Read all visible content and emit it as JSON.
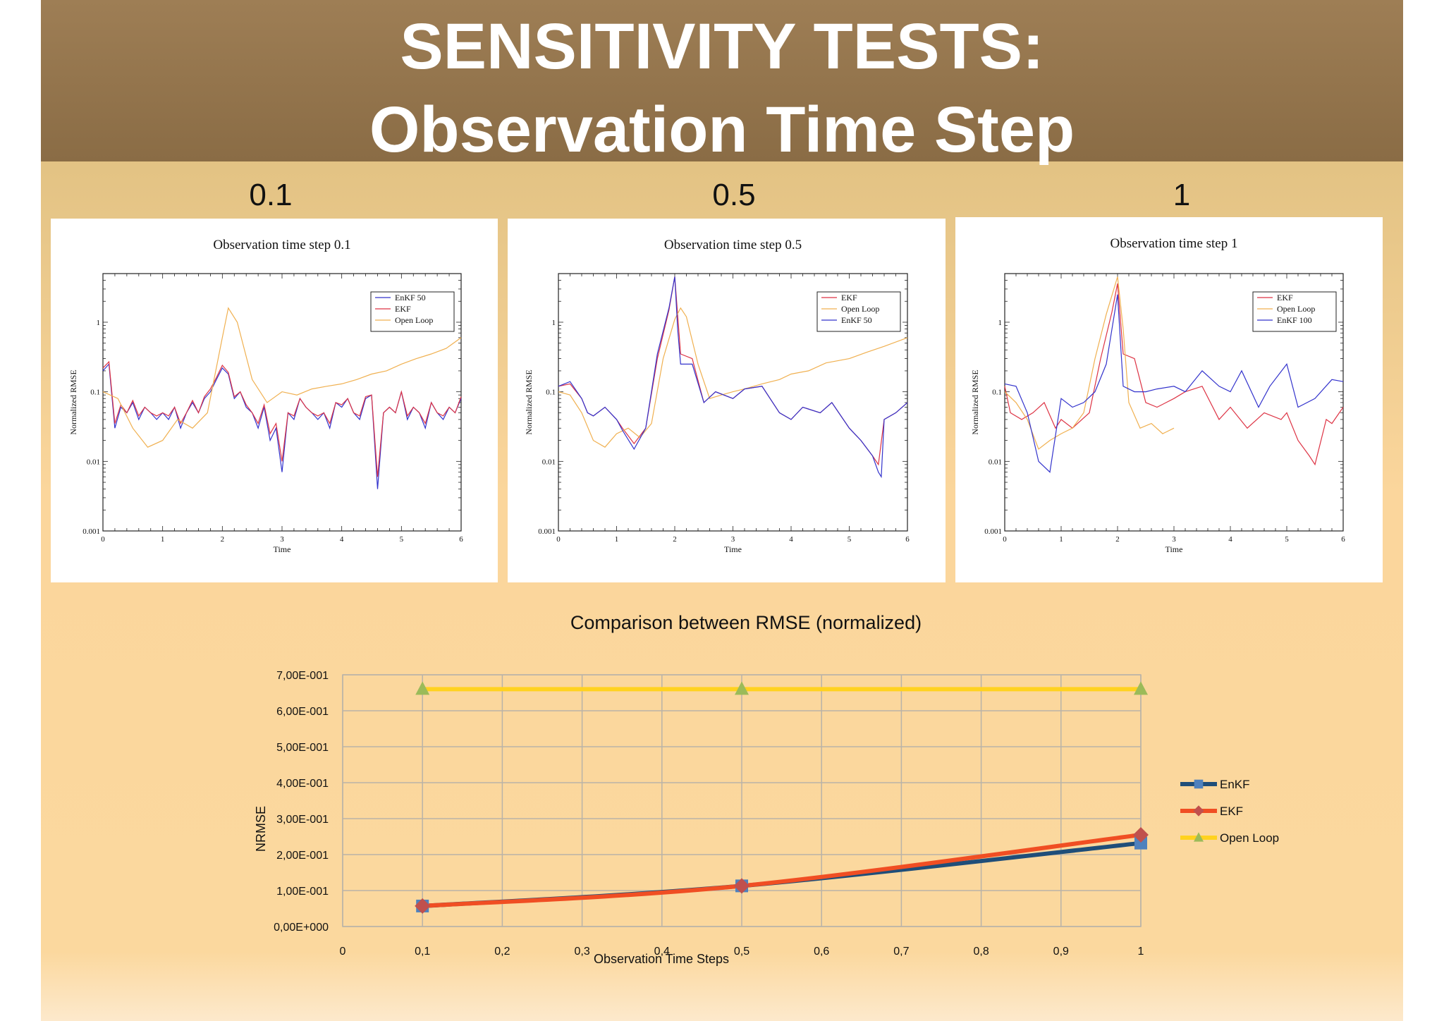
{
  "header": {
    "title_line1": "SENSITIVITY TESTS:",
    "title_line2": "Observation Time Step"
  },
  "columns": [
    {
      "label": "0.1"
    },
    {
      "label": "0.5"
    },
    {
      "label": "1"
    }
  ],
  "colors": {
    "enkf_small": "#3333cc",
    "ekf_small": "#dd3344",
    "openloop_small": "#f0b050",
    "enkf": "#1f4e79",
    "ekf": "#f04e23",
    "openloop": "#ffd21f",
    "enkf_marker": "#4f81bd",
    "ekf_marker": "#c0504d",
    "openloop_marker": "#9bbb59"
  },
  "chart_data": [
    {
      "type": "line",
      "title": "Observation time step 0.1",
      "xlabel": "Time",
      "ylabel": "Normalized RMSE",
      "yscale": "log",
      "xlim": [
        0,
        6
      ],
      "ylim": [
        0.001,
        5
      ],
      "xticks": [
        "0",
        "1",
        "2",
        "3",
        "4",
        "5",
        "6"
      ],
      "yticks": [
        "0.001",
        "0.01",
        "0.1",
        "1"
      ],
      "legend_position": "top-right",
      "series": [
        {
          "name": "EnKF 50",
          "color_key": "enkf_small",
          "x": [
            0,
            0.1,
            0.2,
            0.3,
            0.4,
            0.5,
            0.6,
            0.7,
            0.8,
            0.9,
            1.0,
            1.1,
            1.2,
            1.3,
            1.4,
            1.5,
            1.6,
            1.7,
            1.8,
            1.9,
            2.0,
            2.1,
            2.2,
            2.3,
            2.4,
            2.5,
            2.6,
            2.7,
            2.8,
            2.9,
            3.0,
            3.1,
            3.2,
            3.3,
            3.4,
            3.5,
            3.6,
            3.7,
            3.8,
            3.9,
            4.0,
            4.1,
            4.2,
            4.3,
            4.4,
            4.5,
            4.6,
            4.7,
            4.8,
            4.9,
            5.0,
            5.1,
            5.2,
            5.3,
            5.4,
            5.5,
            5.6,
            5.7,
            5.8,
            5.9,
            6.0
          ],
          "y": [
            0.2,
            0.25,
            0.03,
            0.06,
            0.05,
            0.07,
            0.04,
            0.06,
            0.05,
            0.04,
            0.05,
            0.04,
            0.06,
            0.03,
            0.05,
            0.07,
            0.05,
            0.08,
            0.1,
            0.15,
            0.22,
            0.18,
            0.08,
            0.1,
            0.06,
            0.05,
            0.03,
            0.06,
            0.02,
            0.03,
            0.007,
            0.05,
            0.04,
            0.08,
            0.06,
            0.05,
            0.04,
            0.05,
            0.03,
            0.07,
            0.06,
            0.08,
            0.05,
            0.04,
            0.08,
            0.09,
            0.004,
            0.05,
            0.06,
            0.05,
            0.1,
            0.04,
            0.06,
            0.05,
            0.03,
            0.07,
            0.05,
            0.04,
            0.06,
            0.05,
            0.08
          ]
        },
        {
          "name": "EKF",
          "color_key": "ekf_small",
          "x": [
            0,
            0.1,
            0.2,
            0.3,
            0.4,
            0.5,
            0.6,
            0.7,
            0.8,
            0.9,
            1.0,
            1.1,
            1.2,
            1.3,
            1.4,
            1.5,
            1.6,
            1.7,
            1.8,
            1.9,
            2.0,
            2.1,
            2.2,
            2.3,
            2.4,
            2.5,
            2.6,
            2.7,
            2.8,
            2.9,
            3.0,
            3.1,
            3.2,
            3.3,
            3.4,
            3.5,
            3.6,
            3.7,
            3.8,
            3.9,
            4.0,
            4.1,
            4.2,
            4.3,
            4.4,
            4.5,
            4.6,
            4.7,
            4.8,
            4.9,
            5.0,
            5.1,
            5.2,
            5.3,
            5.4,
            5.5,
            5.6,
            5.7,
            5.8,
            5.9,
            6.0
          ],
          "y": [
            0.22,
            0.27,
            0.035,
            0.065,
            0.05,
            0.075,
            0.045,
            0.06,
            0.05,
            0.045,
            0.05,
            0.045,
            0.06,
            0.035,
            0.05,
            0.075,
            0.05,
            0.085,
            0.11,
            0.16,
            0.24,
            0.19,
            0.085,
            0.1,
            0.065,
            0.05,
            0.035,
            0.065,
            0.025,
            0.035,
            0.01,
            0.05,
            0.045,
            0.08,
            0.06,
            0.05,
            0.045,
            0.05,
            0.035,
            0.07,
            0.065,
            0.08,
            0.05,
            0.045,
            0.085,
            0.09,
            0.006,
            0.05,
            0.06,
            0.05,
            0.1,
            0.045,
            0.06,
            0.05,
            0.035,
            0.07,
            0.05,
            0.045,
            0.06,
            0.05,
            0.085
          ]
        },
        {
          "name": "Open Loop",
          "color_key": "openloop_small",
          "x": [
            0,
            0.25,
            0.5,
            0.75,
            1.0,
            1.25,
            1.5,
            1.75,
            2.0,
            2.1,
            2.25,
            2.5,
            2.75,
            3.0,
            3.25,
            3.5,
            3.75,
            4.0,
            4.25,
            4.5,
            4.75,
            5.0,
            5.25,
            5.5,
            5.75,
            6.0
          ],
          "y": [
            0.1,
            0.08,
            0.03,
            0.016,
            0.02,
            0.04,
            0.03,
            0.05,
            0.6,
            1.6,
            1.0,
            0.15,
            0.07,
            0.1,
            0.09,
            0.11,
            0.12,
            0.13,
            0.15,
            0.18,
            0.2,
            0.25,
            0.3,
            0.35,
            0.42,
            0.6
          ]
        }
      ]
    },
    {
      "type": "line",
      "title": "Observation time step 0.5",
      "xlabel": "Time",
      "ylabel": "Normalized RMSE",
      "yscale": "log",
      "xlim": [
        0,
        6
      ],
      "ylim": [
        0.001,
        5
      ],
      "xticks": [
        "0",
        "1",
        "2",
        "3",
        "4",
        "5",
        "6"
      ],
      "yticks": [
        "0.001",
        "0.01",
        "0.1",
        "1"
      ],
      "legend_position": "top-right",
      "series": [
        {
          "name": "EKF",
          "color_key": "ekf_small",
          "x": [
            0,
            0.2,
            0.4,
            0.5,
            0.6,
            0.8,
            1.0,
            1.1,
            1.3,
            1.5,
            1.7,
            1.9,
            2.0,
            2.1,
            2.3,
            2.5,
            2.7,
            3.0,
            3.2,
            3.5,
            3.8,
            4.0,
            4.2,
            4.5,
            4.7,
            5.0,
            5.2,
            5.4,
            5.5,
            5.6,
            5.8,
            6.0
          ],
          "y": [
            0.12,
            0.13,
            0.08,
            0.05,
            0.045,
            0.06,
            0.04,
            0.03,
            0.018,
            0.03,
            0.3,
            1.5,
            4.5,
            0.35,
            0.3,
            0.07,
            0.1,
            0.08,
            0.11,
            0.12,
            0.05,
            0.04,
            0.06,
            0.05,
            0.07,
            0.03,
            0.02,
            0.012,
            0.009,
            0.04,
            0.05,
            0.07
          ]
        },
        {
          "name": "Open Loop",
          "color_key": "openloop_small",
          "x": [
            0,
            0.2,
            0.4,
            0.6,
            0.8,
            1.0,
            1.2,
            1.4,
            1.6,
            1.8,
            2.0,
            2.1,
            2.2,
            2.4,
            2.6,
            2.8,
            3.0,
            3.2,
            3.5,
            3.8,
            4.0,
            4.3,
            4.6,
            5.0,
            5.3,
            5.6,
            6.0
          ],
          "y": [
            0.1,
            0.09,
            0.05,
            0.02,
            0.016,
            0.025,
            0.03,
            0.022,
            0.035,
            0.3,
            1.1,
            1.6,
            1.2,
            0.25,
            0.08,
            0.09,
            0.1,
            0.11,
            0.13,
            0.15,
            0.18,
            0.2,
            0.26,
            0.3,
            0.37,
            0.45,
            0.6
          ]
        },
        {
          "name": "EnKF 50",
          "color_key": "enkf_small",
          "x": [
            0,
            0.2,
            0.4,
            0.5,
            0.6,
            0.8,
            1.0,
            1.1,
            1.3,
            1.5,
            1.7,
            1.9,
            2.0,
            2.05,
            2.1,
            2.3,
            2.5,
            2.7,
            3.0,
            3.2,
            3.5,
            3.8,
            4.0,
            4.2,
            4.5,
            4.7,
            5.0,
            5.2,
            5.4,
            5.5,
            5.55,
            5.6,
            5.8,
            6.0
          ],
          "y": [
            0.12,
            0.14,
            0.08,
            0.05,
            0.045,
            0.06,
            0.04,
            0.028,
            0.015,
            0.03,
            0.35,
            1.6,
            4.5,
            0.8,
            0.25,
            0.25,
            0.07,
            0.1,
            0.08,
            0.11,
            0.12,
            0.05,
            0.04,
            0.06,
            0.05,
            0.07,
            0.03,
            0.02,
            0.012,
            0.007,
            0.006,
            0.04,
            0.05,
            0.07
          ]
        }
      ]
    },
    {
      "type": "line",
      "title": "Observation time step 1",
      "xlabel": "Time",
      "ylabel": "Normalized RMSE",
      "yscale": "log",
      "xlim": [
        0,
        6
      ],
      "ylim": [
        0.001,
        5
      ],
      "xticks": [
        "0",
        "1",
        "2",
        "3",
        "4",
        "5",
        "6"
      ],
      "yticks": [
        "0.001",
        "0.01",
        "0.1",
        "1"
      ],
      "legend_position": "top-right",
      "series": [
        {
          "name": "EKF",
          "color_key": "ekf_small",
          "x": [
            0,
            0.1,
            0.3,
            0.5,
            0.7,
            0.9,
            1.0,
            1.2,
            1.5,
            1.7,
            1.9,
            2.0,
            2.1,
            2.3,
            2.5,
            2.7,
            3.0,
            3.2,
            3.5,
            3.8,
            4.0,
            4.3,
            4.6,
            4.9,
            5.0,
            5.2,
            5.4,
            5.5,
            5.7,
            5.8,
            6.0
          ],
          "y": [
            0.12,
            0.05,
            0.04,
            0.05,
            0.07,
            0.03,
            0.04,
            0.03,
            0.05,
            0.3,
            1.4,
            3.6,
            0.35,
            0.3,
            0.07,
            0.06,
            0.08,
            0.1,
            0.12,
            0.04,
            0.06,
            0.03,
            0.05,
            0.04,
            0.05,
            0.02,
            0.012,
            0.009,
            0.04,
            0.035,
            0.06
          ]
        },
        {
          "name": "Open Loop",
          "color_key": "openloop_small",
          "x": [
            0,
            0.2,
            0.4,
            0.6,
            0.8,
            1.0,
            1.2,
            1.4,
            1.6,
            1.8,
            2.0,
            2.1,
            2.2,
            2.4,
            2.6,
            2.8,
            3.0
          ],
          "y": [
            0.1,
            0.07,
            0.04,
            0.015,
            0.02,
            0.025,
            0.03,
            0.05,
            0.3,
            1.3,
            4.5,
            0.8,
            0.07,
            0.03,
            0.035,
            0.025,
            0.03
          ]
        },
        {
          "name": "EnKF 100",
          "color_key": "enkf_small",
          "x": [
            0,
            0.2,
            0.4,
            0.6,
            0.8,
            1.0,
            1.2,
            1.4,
            1.6,
            1.8,
            2.0,
            2.1,
            2.3,
            2.5,
            2.7,
            3.0,
            3.2,
            3.5,
            3.8,
            4.0,
            4.2,
            4.5,
            4.7,
            5.0,
            5.2,
            5.5,
            5.8,
            6.0
          ],
          "y": [
            0.13,
            0.12,
            0.05,
            0.01,
            0.007,
            0.08,
            0.06,
            0.07,
            0.1,
            0.25,
            2.5,
            0.12,
            0.1,
            0.1,
            0.11,
            0.12,
            0.1,
            0.2,
            0.12,
            0.1,
            0.2,
            0.06,
            0.12,
            0.25,
            0.06,
            0.08,
            0.15,
            0.14
          ]
        }
      ]
    },
    {
      "type": "line",
      "title": "Comparison between RMSE (normalized)",
      "xlabel": "Observation Time Steps",
      "ylabel": "NRMSE",
      "xlim": [
        0,
        1
      ],
      "ylim": [
        0,
        0.7
      ],
      "xticks": [
        "0",
        "0,1",
        "0,2",
        "0,3",
        "0,4",
        "0,5",
        "0,6",
        "0,7",
        "0,8",
        "0,9",
        "1"
      ],
      "yticks": [
        "0,00E+000",
        "1,00E-001",
        "2,00E-001",
        "3,00E-001",
        "4,00E-001",
        "5,00E-001",
        "6,00E-001",
        "7,00E-001"
      ],
      "grid": true,
      "legend_position": "right",
      "series": [
        {
          "name": "EnKF",
          "color_key": "enkf",
          "marker_key": "enkf_marker",
          "marker": "square",
          "x": [
            0.1,
            0.5,
            1
          ],
          "y": [
            0.057,
            0.113,
            0.232
          ]
        },
        {
          "name": "EKF",
          "color_key": "ekf",
          "marker_key": "ekf_marker",
          "marker": "diamond",
          "x": [
            0.1,
            0.5,
            1
          ],
          "y": [
            0.057,
            0.113,
            0.255
          ]
        },
        {
          "name": "Open Loop",
          "color_key": "openloop",
          "marker_key": "openloop_marker",
          "marker": "triangle",
          "x": [
            0.1,
            0.5,
            1
          ],
          "y": [
            0.66,
            0.66,
            0.66
          ]
        }
      ]
    }
  ]
}
